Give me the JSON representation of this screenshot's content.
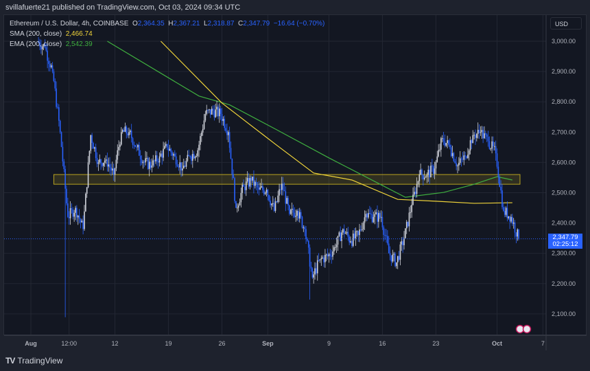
{
  "header": {
    "published": "svillafuerte21 published on TradingView.com, Oct 03, 2024 09:34 UTC"
  },
  "legend": {
    "symbol": "Ethereum / U.S. Dollar, 4h, COINBASE",
    "o_label": "O",
    "o": "2,364.35",
    "h_label": "H",
    "h": "2,367.21",
    "l_label": "L",
    "l": "2,318.87",
    "c_label": "C",
    "c": "2,347.79",
    "change": "−16.64 (−0.70%)",
    "sma_label": "SMA (200, close)",
    "sma_value": "2,466.74",
    "ema_label": "EMA (200, close)",
    "ema_value": "2,542.39"
  },
  "axis": {
    "currency": "USD",
    "last_price": "2,347.79",
    "countdown": "02:25:12"
  },
  "footer": {
    "brand": "TradingView"
  },
  "colors": {
    "up": "#d1d4dc",
    "down": "#2962ff",
    "sma": "#f0d43a",
    "ema": "#3faf3f",
    "zone": "#b8a320",
    "background": "#131722"
  },
  "chart_data": {
    "type": "candlestick",
    "title": "Ethereum / U.S. Dollar, 4h, COINBASE",
    "ylim": [
      2030,
      3050
    ],
    "yticks": [
      2100,
      2200,
      2300,
      2400,
      2500,
      2600,
      2700,
      2800,
      2900,
      3000
    ],
    "ytick_labels": [
      "2,100.00",
      "2,200.00",
      "2,300.00",
      "2,400.00",
      "2,500.00",
      "2,600.00",
      "2,700.00",
      "2,800.00",
      "2,900.00",
      "3,000.00"
    ],
    "xticks": [
      {
        "date": "2024-08-01",
        "label": "Aug",
        "bold": true
      },
      {
        "date": "2024-08-06",
        "label": "12:00"
      },
      {
        "date": "2024-08-12",
        "label": "12"
      },
      {
        "date": "2024-08-19",
        "label": "19"
      },
      {
        "date": "2024-08-26",
        "label": "26"
      },
      {
        "date": "2024-09-01",
        "label": "Sep",
        "bold": true
      },
      {
        "date": "2024-09-09",
        "label": "9"
      },
      {
        "date": "2024-09-16",
        "label": "16"
      },
      {
        "date": "2024-09-23",
        "label": "23"
      },
      {
        "date": "2024-10-01",
        "label": "Oct",
        "bold": true
      },
      {
        "date": "2024-10-07",
        "label": "7"
      }
    ],
    "start_date": "2024-08-02",
    "daily_closes": [
      2980,
      2900,
      2700,
      2420,
      2450,
      2380,
      2690,
      2600,
      2610,
      2560,
      2700,
      2700,
      2650,
      2600,
      2590,
      2620,
      2650,
      2620,
      2580,
      2620,
      2640,
      2760,
      2770,
      2760,
      2700,
      2450,
      2520,
      2540,
      2510,
      2510,
      2440,
      2530,
      2430,
      2440,
      2380,
      2220,
      2280,
      2290,
      2320,
      2380,
      2340,
      2360,
      2430,
      2420,
      2420,
      2300,
      2270,
      2350,
      2460,
      2560,
      2560,
      2580,
      2680,
      2650,
      2590,
      2620,
      2690,
      2700,
      2670,
      2630,
      2440,
      2420,
      2348
    ],
    "notable_lows": [
      {
        "date": "2024-08-05",
        "low": 2110
      },
      {
        "date": "2024-09-06",
        "low": 2150
      }
    ],
    "sma200": [
      [
        "2024-08-18",
        3000
      ],
      [
        "2024-08-26",
        2796
      ],
      [
        "2024-09-02",
        2660
      ],
      [
        "2024-09-07",
        2565
      ],
      [
        "2024-09-12",
        2542
      ],
      [
        "2024-09-18",
        2478
      ],
      [
        "2024-09-23",
        2472
      ],
      [
        "2024-09-28",
        2465
      ],
      [
        "2024-10-03",
        2467
      ]
    ],
    "ema200": [
      [
        "2024-08-11",
        3000
      ],
      [
        "2024-08-23",
        2819
      ],
      [
        "2024-08-27",
        2790
      ],
      [
        "2024-09-02",
        2710
      ],
      [
        "2024-09-09",
        2615
      ],
      [
        "2024-09-16",
        2524
      ],
      [
        "2024-09-19",
        2485
      ],
      [
        "2024-09-24",
        2501
      ],
      [
        "2024-09-28",
        2528
      ],
      [
        "2024-10-01",
        2553
      ],
      [
        "2024-10-03",
        2542
      ]
    ],
    "zone": {
      "from": "2024-08-04",
      "to": "2024-10-04",
      "low": 2528,
      "high": 2560
    },
    "last_price": 2347.79
  }
}
